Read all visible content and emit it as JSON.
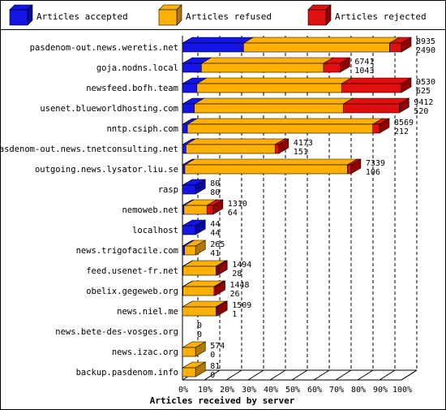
{
  "colors": {
    "accepted": "#1414e6",
    "refused": "#ffb000",
    "rejected": "#e01010",
    "accepted_side": "#0a0a9a",
    "refused_side": "#b07800",
    "rejected_side": "#900000"
  },
  "chart_data": {
    "type": "bar",
    "orientation": "horizontal",
    "stacked": true,
    "normalized_percent": true,
    "title": "",
    "xlabel": "Articles received by server",
    "ylabel": "",
    "xlim": [
      0,
      100
    ],
    "x_ticks": [
      "0%",
      "10%",
      "20%",
      "30%",
      "40%",
      "50%",
      "60%",
      "70%",
      "80%",
      "90%",
      "100%"
    ],
    "legend": [
      "Articles accepted",
      "Articles refused",
      "Articles rejected"
    ],
    "legend_position": "top",
    "grid": true,
    "categories": [
      "pasdenom-out.news.weretis.net",
      "goja.nodns.local",
      "newsfeed.bofh.team",
      "usenet.blueworldhosting.com",
      "nntp.csiph.com",
      "pasdenom-out.news.tnetconsulting.net",
      "outgoing.news.lysator.liu.se",
      "rasp",
      "nemoweb.net",
      "localhost",
      "news.trigofacile.com",
      "feed.usenet-fr.net",
      "obelix.gegeweb.org",
      "news.niel.me",
      "news.bete-des-vosges.org",
      "news.izac.org",
      "backup.pasdenom.info"
    ],
    "series": [
      {
        "name": "Articles accepted",
        "percent": [
          27.9,
          12.0,
          6.6,
          5.5,
          2.5,
          3.6,
          1.4,
          100.0,
          4.9,
          100.0,
          15.5,
          1.9,
          1.8,
          0.1,
          0,
          0,
          0
        ]
      },
      {
        "name": "Articles refused",
        "percent": [
          66.7,
          77.5,
          66.1,
          68.7,
          94.1,
          92.6,
          96.5,
          0,
          75.1,
          0,
          84.5,
          93.9,
          94.4,
          95.6,
          0,
          100.0,
          100.0
        ]
      },
      {
        "name": "Articles rejected",
        "percent": [
          5.4,
          10.5,
          27.3,
          25.8,
          3.4,
          3.8,
          2.1,
          0,
          20.0,
          0,
          0,
          4.2,
          3.8,
          4.3,
          0,
          0,
          0
        ]
      }
    ],
    "data_labels": [
      [
        "8935",
        "2490"
      ],
      [
        "6741",
        "1043"
      ],
      [
        "9530",
        "625"
      ],
      [
        "9412",
        "520"
      ],
      [
        "8569",
        "212"
      ],
      [
        "4173",
        "151"
      ],
      [
        "7339",
        "106"
      ],
      [
        "80",
        "80"
      ],
      [
        "1310",
        "64"
      ],
      [
        "44",
        "44"
      ],
      [
        "265",
        "41"
      ],
      [
        "1494",
        "28"
      ],
      [
        "1448",
        "26"
      ],
      [
        "1509",
        "1"
      ],
      [
        "0",
        "0"
      ],
      [
        "574",
        "0"
      ],
      [
        "81",
        "0"
      ]
    ],
    "bar_scale_percent": [
      100,
      72,
      100,
      99,
      90,
      44,
      77,
      6,
      14,
      6,
      6,
      16,
      15,
      16,
      0,
      6,
      6
    ]
  }
}
